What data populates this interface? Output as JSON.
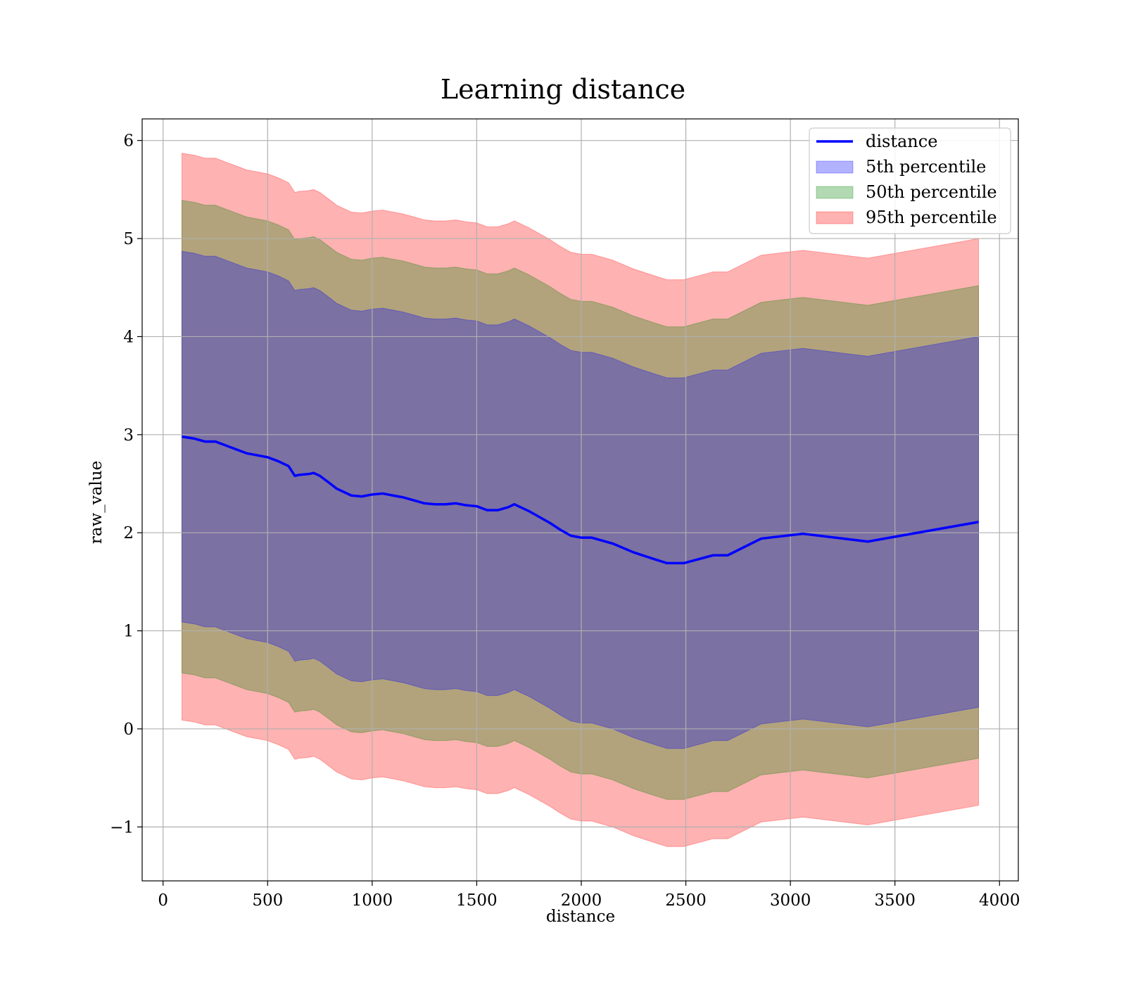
{
  "chart_data": {
    "type": "area",
    "title": "Learning distance",
    "xlabel": "distance",
    "ylabel": "raw_value",
    "xlim": [
      -100,
      4090
    ],
    "ylim": [
      -1.55,
      6.22
    ],
    "xticks": [
      0,
      500,
      1000,
      1500,
      2000,
      2500,
      3000,
      3500,
      4000
    ],
    "yticks": [
      -1,
      0,
      1,
      2,
      3,
      4,
      5,
      6
    ],
    "ytick_labels": [
      "−1",
      "0",
      "1",
      "2",
      "3",
      "4",
      "5",
      "6"
    ],
    "grid": true,
    "legend_position": "top-right",
    "x": [
      90,
      150,
      200,
      250,
      300,
      350,
      400,
      450,
      500,
      550,
      600,
      630,
      650,
      700,
      720,
      750,
      800,
      830,
      900,
      950,
      1000,
      1050,
      1100,
      1150,
      1200,
      1250,
      1300,
      1350,
      1400,
      1450,
      1500,
      1550,
      1600,
      1650,
      1680,
      1700,
      1750,
      1800,
      1850,
      1900,
      1950,
      2000,
      2050,
      2150,
      2250,
      2350,
      2410,
      2490,
      2630,
      2700,
      2860,
      3060,
      3370,
      3900
    ],
    "series": [
      {
        "name": "distance",
        "kind": "line",
        "color": "#0000ff",
        "values": [
          2.98,
          2.96,
          2.93,
          2.93,
          2.89,
          2.85,
          2.81,
          2.79,
          2.77,
          2.73,
          2.68,
          2.58,
          2.59,
          2.6,
          2.61,
          2.58,
          2.5,
          2.45,
          2.38,
          2.37,
          2.39,
          2.4,
          2.38,
          2.36,
          2.33,
          2.3,
          2.29,
          2.29,
          2.3,
          2.28,
          2.27,
          2.23,
          2.23,
          2.26,
          2.29,
          2.27,
          2.22,
          2.16,
          2.1,
          2.03,
          1.97,
          1.95,
          1.95,
          1.89,
          1.8,
          1.73,
          1.69,
          1.69,
          1.77,
          1.77,
          1.94,
          1.99,
          1.91,
          2.11
        ]
      },
      {
        "name": "5th percentile",
        "kind": "band",
        "color": "#0000ff",
        "half_width": 1.89
      },
      {
        "name": "50th percentile",
        "kind": "band",
        "color": "#008000",
        "half_width": 2.41
      },
      {
        "name": "95th percentile",
        "kind": "band",
        "color": "#ff0000",
        "half_width": 2.89
      }
    ]
  }
}
